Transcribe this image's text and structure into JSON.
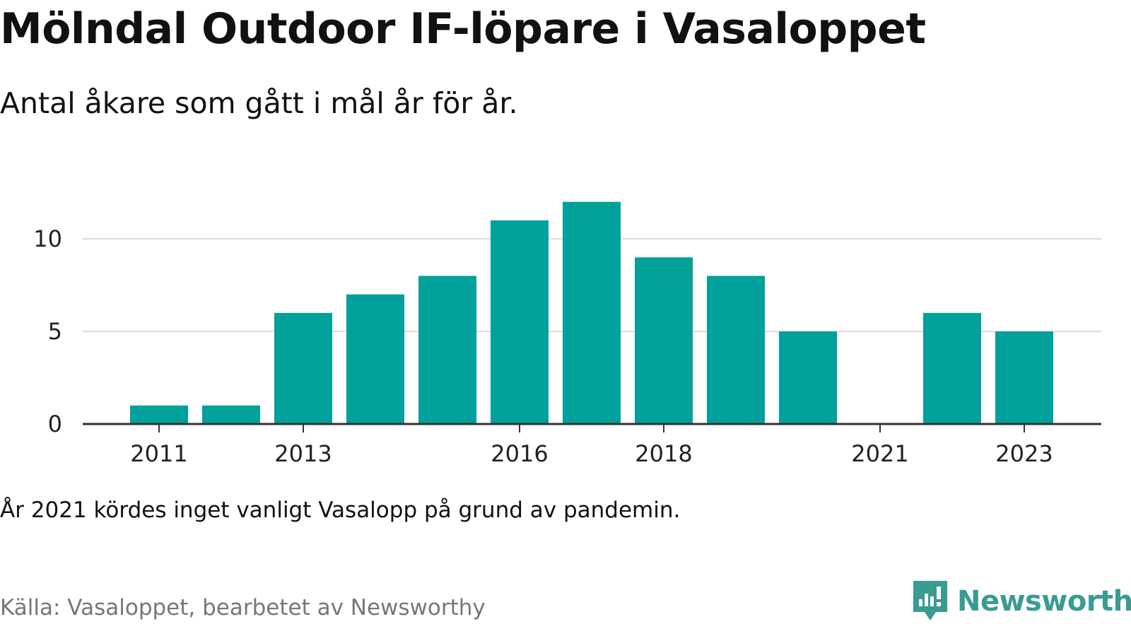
{
  "title": "Mölndal Outdoor IF-löpare i Vasaloppet",
  "subtitle": "Antal åkare som gått i mål år för år.",
  "note": "År 2021 kördes inget vanligt Vasalopp på grund av pandemin.",
  "source": "Källa: Vasaloppet, bearbetet av Newsworthy",
  "brand": {
    "name": "Newsworthy",
    "icon": "bar-chart-bubble-icon"
  },
  "colors": {
    "bar": "#00a19a",
    "grid": "#dddddd",
    "axis": "#333333",
    "brand": "#3a9b92"
  },
  "chart_data": {
    "type": "bar",
    "categories": [
      "2011",
      "2012",
      "2013",
      "2014",
      "2015",
      "2016",
      "2017",
      "2018",
      "2019",
      "2020",
      "2021",
      "2022",
      "2023"
    ],
    "values": [
      1,
      1,
      6,
      7,
      8,
      11,
      12,
      9,
      8,
      5,
      0,
      6,
      5
    ],
    "x_tick_labels": [
      "2011",
      "2013",
      "2016",
      "2018",
      "2021",
      "2023"
    ],
    "y_ticks": [
      0,
      5,
      10
    ],
    "ylim": [
      0,
      12
    ],
    "grid": true,
    "xlabel": "",
    "ylabel": ""
  }
}
